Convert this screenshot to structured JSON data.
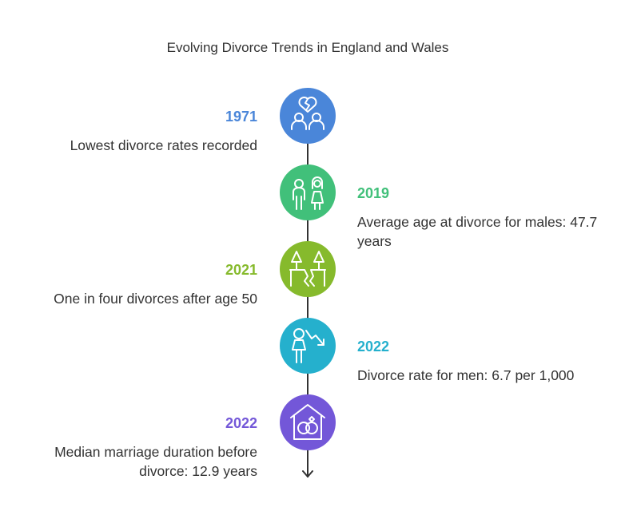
{
  "title": "Evolving Divorce Trends in England and Wales",
  "events": [
    {
      "year": "1971",
      "text": "Lowest divorce rates recorded",
      "color": "#4a86d9",
      "icon": "broken-heart-couple-icon"
    },
    {
      "year": "2019",
      "text": "Average age at divorce for males: 47.7 years",
      "color": "#41c07a",
      "icon": "man-and-woman-icon"
    },
    {
      "year": "2021",
      "text": "One in four divorces after age 50",
      "color": "#86ba2c",
      "icon": "cracked-ground-trees-icon"
    },
    {
      "year": "2022",
      "text": "Divorce rate for men: 6.7 per 1,000",
      "color": "#25b0cd",
      "icon": "man-declining-arrow-icon"
    },
    {
      "year": "2022",
      "text": "Median marriage duration before divorce: 12.9 years",
      "color": "#7357d8",
      "icon": "house-with-rings-icon"
    }
  ]
}
